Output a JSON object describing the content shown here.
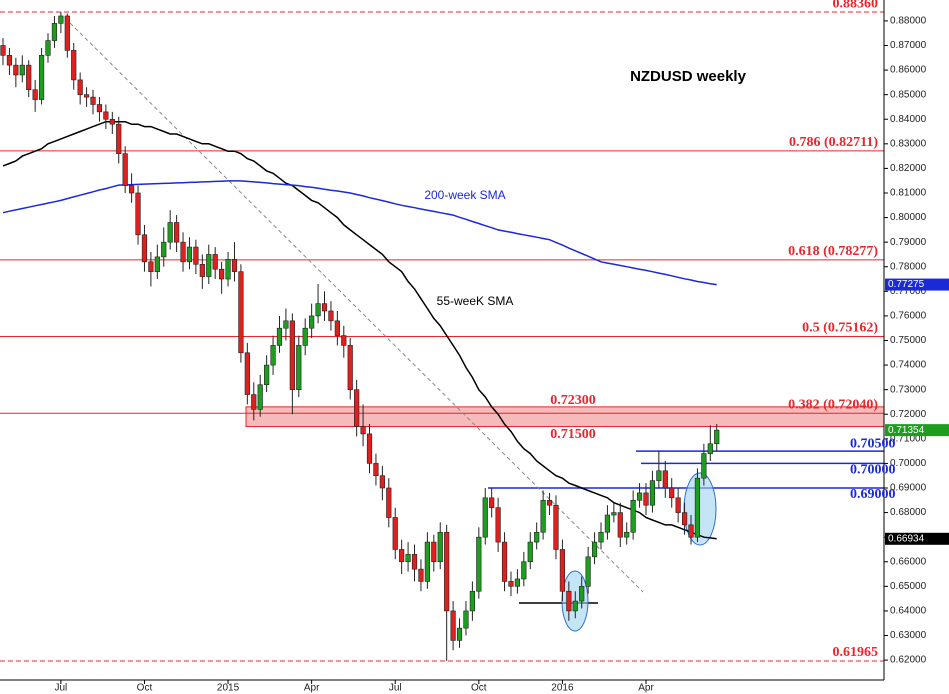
{
  "chart_data": {
    "type": "candlestick",
    "title": "NZDUSD weekly",
    "categories": [
      null,
      null,
      null,
      null,
      null,
      null,
      null,
      null,
      null,
      "Jul",
      null,
      null,
      null,
      null,
      null,
      null,
      null,
      null,
      null,
      null,
      null,
      null,
      "Oct",
      null,
      null,
      null,
      null,
      null,
      null,
      null,
      null,
      null,
      null,
      null,
      null,
      "2015",
      null,
      null,
      null,
      null,
      null,
      null,
      null,
      null,
      null,
      null,
      null,
      null,
      "Apr",
      null,
      null,
      null,
      null,
      null,
      null,
      null,
      null,
      null,
      null,
      null,
      null,
      "Jul",
      null,
      null,
      null,
      null,
      null,
      null,
      null,
      null,
      null,
      null,
      null,
      null,
      "Oct",
      null,
      null,
      null,
      null,
      null,
      null,
      null,
      null,
      null,
      null,
      null,
      null,
      "2016",
      null,
      null,
      null,
      null,
      null,
      null,
      null,
      null,
      null,
      null,
      null,
      null,
      "Apr",
      null,
      null,
      null,
      null,
      null,
      null,
      null,
      null,
      null,
      null,
      null
    ],
    "open": [
      0.87,
      0.866,
      0.862,
      0.858,
      0.862,
      0.852,
      0.848,
      0.866,
      0.872,
      0.879,
      0.882,
      0.868,
      0.856,
      0.85,
      0.849,
      0.846,
      0.843,
      0.84,
      0.838,
      0.826,
      0.813,
      0.81,
      0.793,
      0.782,
      0.778,
      0.784,
      0.79,
      0.798,
      0.79,
      0.782,
      0.788,
      0.781,
      0.776,
      0.785,
      0.779,
      0.775,
      0.783,
      0.778,
      0.745,
      0.728,
      0.722,
      0.732,
      0.74,
      0.748,
      0.755,
      0.758,
      0.73,
      0.748,
      0.755,
      0.76,
      0.765,
      0.762,
      0.758,
      0.752,
      0.748,
      0.73,
      0.715,
      0.712,
      0.7,
      0.695,
      0.69,
      0.678,
      0.665,
      0.66,
      0.663,
      0.657,
      0.652,
      0.668,
      0.66,
      0.672,
      0.64,
      0.628,
      0.633,
      0.64,
      0.648,
      0.67,
      0.686,
      0.682,
      0.668,
      0.652,
      0.65,
      0.653,
      0.66,
      0.668,
      0.672,
      0.685,
      0.683,
      0.665,
      0.648,
      0.64,
      0.644,
      0.65,
      0.662,
      0.668,
      0.672,
      0.679,
      0.68,
      0.67,
      0.672,
      0.685,
      0.688,
      0.683,
      0.693,
      0.697,
      0.69,
      0.686,
      0.68,
      0.675,
      0.67,
      0.694,
      0.704,
      0.708
    ],
    "high": [
      0.873,
      0.869,
      0.865,
      0.866,
      0.864,
      0.856,
      0.869,
      0.875,
      0.882,
      0.8836,
      0.883,
      0.871,
      0.859,
      0.853,
      0.852,
      0.849,
      0.846,
      0.843,
      0.841,
      0.829,
      0.818,
      0.813,
      0.797,
      0.786,
      0.789,
      0.796,
      0.803,
      0.801,
      0.794,
      0.792,
      0.791,
      0.785,
      0.789,
      0.788,
      0.782,
      0.786,
      0.79,
      0.781,
      0.749,
      0.733,
      0.736,
      0.744,
      0.752,
      0.76,
      0.763,
      0.761,
      0.752,
      0.759,
      0.765,
      0.773,
      0.77,
      0.766,
      0.762,
      0.756,
      0.751,
      0.734,
      0.724,
      0.716,
      0.704,
      0.699,
      0.694,
      0.682,
      0.669,
      0.668,
      0.667,
      0.661,
      0.672,
      0.671,
      0.676,
      0.675,
      0.644,
      0.637,
      0.644,
      0.652,
      0.674,
      0.69,
      0.69,
      0.686,
      0.672,
      0.656,
      0.657,
      0.664,
      0.672,
      0.676,
      0.689,
      0.688,
      0.687,
      0.669,
      0.652,
      0.648,
      0.654,
      0.666,
      0.672,
      0.676,
      0.683,
      0.684,
      0.684,
      0.676,
      0.689,
      0.692,
      0.692,
      0.697,
      0.705,
      0.701,
      0.694,
      0.69,
      0.684,
      0.679,
      0.698,
      0.708,
      0.7155,
      0.716
    ],
    "low": [
      0.862,
      0.858,
      0.853,
      0.855,
      0.849,
      0.843,
      0.846,
      0.863,
      0.869,
      0.875,
      0.865,
      0.852,
      0.846,
      0.845,
      0.842,
      0.839,
      0.836,
      0.834,
      0.822,
      0.81,
      0.806,
      0.789,
      0.778,
      0.772,
      0.775,
      0.78,
      0.787,
      0.786,
      0.778,
      0.779,
      0.777,
      0.771,
      0.773,
      0.775,
      0.769,
      0.772,
      0.774,
      0.741,
      0.724,
      0.7175,
      0.719,
      0.729,
      0.736,
      0.745,
      0.75,
      0.72,
      0.727,
      0.744,
      0.751,
      0.757,
      0.758,
      0.754,
      0.748,
      0.743,
      0.726,
      0.711,
      0.707,
      0.696,
      0.691,
      0.685,
      0.674,
      0.661,
      0.655,
      0.656,
      0.652,
      0.648,
      0.649,
      0.656,
      0.657,
      0.6197,
      0.624,
      0.625,
      0.63,
      0.636,
      0.645,
      0.667,
      0.678,
      0.664,
      0.648,
      0.646,
      0.647,
      0.65,
      0.657,
      0.665,
      0.669,
      0.679,
      0.661,
      0.644,
      0.636,
      0.637,
      0.641,
      0.647,
      0.659,
      0.665,
      0.669,
      0.676,
      0.666,
      0.667,
      0.669,
      0.682,
      0.679,
      0.68,
      0.69,
      0.686,
      0.682,
      0.676,
      0.671,
      0.667,
      0.668,
      0.691,
      0.701,
      0.705
    ],
    "close": [
      0.866,
      0.862,
      0.858,
      0.862,
      0.852,
      0.848,
      0.866,
      0.872,
      0.879,
      0.882,
      0.868,
      0.856,
      0.85,
      0.849,
      0.846,
      0.843,
      0.84,
      0.838,
      0.826,
      0.813,
      0.81,
      0.793,
      0.782,
      0.778,
      0.784,
      0.79,
      0.798,
      0.79,
      0.782,
      0.788,
      0.781,
      0.776,
      0.785,
      0.779,
      0.775,
      0.783,
      0.778,
      0.745,
      0.728,
      0.722,
      0.732,
      0.74,
      0.748,
      0.755,
      0.758,
      0.73,
      0.748,
      0.755,
      0.76,
      0.765,
      0.762,
      0.758,
      0.752,
      0.748,
      0.73,
      0.715,
      0.712,
      0.7,
      0.695,
      0.69,
      0.678,
      0.665,
      0.66,
      0.663,
      0.657,
      0.652,
      0.668,
      0.66,
      0.672,
      0.64,
      0.628,
      0.633,
      0.64,
      0.648,
      0.67,
      0.686,
      0.682,
      0.668,
      0.652,
      0.65,
      0.653,
      0.66,
      0.668,
      0.672,
      0.685,
      0.683,
      0.665,
      0.648,
      0.64,
      0.644,
      0.65,
      0.662,
      0.668,
      0.672,
      0.679,
      0.68,
      0.67,
      0.672,
      0.685,
      0.688,
      0.683,
      0.693,
      0.697,
      0.69,
      0.686,
      0.68,
      0.675,
      0.67,
      0.694,
      0.704,
      0.708,
      0.71354
    ],
    "last_label": "0.71354",
    "up_color": "#1e9e1e",
    "down_color": "#e0201e",
    "lines": [
      {
        "label": "55-weeK SMA",
        "color": "#000000",
        "last_label": "0.66934",
        "values": [
          0.821,
          0.822,
          0.823,
          0.825,
          0.826,
          0.827,
          0.828,
          0.83,
          0.831,
          0.832,
          0.833,
          0.834,
          0.835,
          0.836,
          0.837,
          0.838,
          0.839,
          0.839,
          0.839,
          0.839,
          0.838,
          0.838,
          0.837,
          0.837,
          0.836,
          0.835,
          0.834,
          0.834,
          0.833,
          0.832,
          0.831,
          0.83,
          0.83,
          0.829,
          0.828,
          0.827,
          0.827,
          0.826,
          0.824,
          0.823,
          0.821,
          0.819,
          0.818,
          0.816,
          0.814,
          0.813,
          0.811,
          0.809,
          0.807,
          0.806,
          0.804,
          0.802,
          0.8,
          0.797,
          0.795,
          0.793,
          0.791,
          0.789,
          0.787,
          0.785,
          0.782,
          0.78,
          0.778,
          0.774,
          0.771,
          0.767,
          0.763,
          0.759,
          0.756,
          0.752,
          0.748,
          0.744,
          0.739,
          0.735,
          0.73,
          0.727,
          0.723,
          0.72,
          0.716,
          0.713,
          0.709,
          0.706,
          0.704,
          0.701,
          0.699,
          0.697,
          0.695,
          0.694,
          0.692,
          0.691,
          0.69,
          0.689,
          0.688,
          0.687,
          0.686,
          0.684,
          0.683,
          0.682,
          0.681,
          0.68,
          0.678,
          0.677,
          0.676,
          0.675,
          0.675,
          0.674,
          0.673,
          0.672,
          0.671,
          0.67,
          0.6697,
          0.66934
        ]
      },
      {
        "label": "200-week SMA",
        "color": "#1a2ad6",
        "last_label": "0.77275",
        "values": [
          0.802,
          0.8026,
          0.8031,
          0.8037,
          0.8042,
          0.8048,
          0.8053,
          0.8059,
          0.8064,
          0.807,
          0.8077,
          0.8084,
          0.8091,
          0.8098,
          0.8105,
          0.8112,
          0.8118,
          0.8125,
          0.8132,
          0.8133,
          0.8134,
          0.8135,
          0.8136,
          0.8137,
          0.8138,
          0.8139,
          0.814,
          0.8141,
          0.8142,
          0.8143,
          0.8144,
          0.8145,
          0.8146,
          0.8147,
          0.8148,
          0.8149,
          0.8149,
          0.8149,
          0.8147,
          0.8145,
          0.8143,
          0.8141,
          0.8138,
          0.8136,
          0.8134,
          0.8132,
          0.813,
          0.8126,
          0.8123,
          0.8119,
          0.8115,
          0.8111,
          0.8108,
          0.8104,
          0.81,
          0.8094,
          0.8088,
          0.8081,
          0.8075,
          0.8069,
          0.8063,
          0.8056,
          0.805,
          0.8045,
          0.804,
          0.8035,
          0.803,
          0.8025,
          0.802,
          0.8015,
          0.801,
          0.8001,
          0.7993,
          0.7984,
          0.7976,
          0.7967,
          0.7959,
          0.795,
          0.7945,
          0.794,
          0.7935,
          0.793,
          0.7925,
          0.792,
          0.7915,
          0.791,
          0.7899,
          0.7888,
          0.7876,
          0.7865,
          0.7854,
          0.7843,
          0.7831,
          0.782,
          0.7815,
          0.781,
          0.7805,
          0.78,
          0.7795,
          0.779,
          0.7785,
          0.778,
          0.7774,
          0.7769,
          0.7763,
          0.7757,
          0.7751,
          0.7746,
          0.774,
          0.7736,
          0.7731,
          0.77275
        ]
      }
    ],
    "levels": [
      {
        "value": 0.8836,
        "label": "0.88360",
        "dashed": true
      },
      {
        "value": 0.82711,
        "label": "0.786 (0.82711)",
        "dashed": false
      },
      {
        "value": 0.78277,
        "label": "0.618 (0.78277)",
        "dashed": false
      },
      {
        "value": 0.75162,
        "label": "0.5 (0.75162)",
        "dashed": false
      },
      {
        "value": 0.7204,
        "label": "0.382 (0.72040)",
        "dashed": false
      },
      {
        "value": 0.61965,
        "label": "0.61965",
        "dashed": true
      }
    ],
    "level_color": "#e8262b",
    "zone": {
      "high": {
        "value": 0.723,
        "label": "0.72300"
      },
      "low": {
        "value": 0.715,
        "label": "0.71500"
      },
      "color": "#f4a3a3"
    },
    "supports": [
      {
        "value": 0.705,
        "label": "0.70500"
      },
      {
        "value": 0.7,
        "label": "0.70000"
      },
      {
        "value": 0.69,
        "label": "0.69000"
      }
    ],
    "support_color": "#1a2ad6",
    "ylim": [
      0.6119,
      0.8885
    ],
    "yticks": [
      {
        "value": 0.62,
        "label": "0.62000"
      },
      {
        "value": 0.63,
        "label": "0.63000"
      },
      {
        "value": 0.64,
        "label": "0.64000"
      },
      {
        "value": 0.65,
        "label": "0.65000"
      },
      {
        "value": 0.66,
        "label": "0.66000"
      },
      {
        "value": 0.67,
        "label": "0.67000"
      },
      {
        "value": 0.68,
        "label": "0.68000"
      },
      {
        "value": 0.69,
        "label": "0.69000"
      },
      {
        "value": 0.7,
        "label": "0.70000"
      },
      {
        "value": 0.71,
        "label": "0.71000"
      },
      {
        "value": 0.72,
        "label": "0.72000"
      },
      {
        "value": 0.73,
        "label": "0.73000"
      },
      {
        "value": 0.74,
        "label": "0.74000"
      },
      {
        "value": 0.75,
        "label": "0.75000"
      },
      {
        "value": 0.76,
        "label": "0.76000"
      },
      {
        "value": 0.77,
        "label": "0.77000"
      },
      {
        "value": 0.78,
        "label": "0.78000"
      },
      {
        "value": 0.79,
        "label": "0.79000"
      },
      {
        "value": 0.8,
        "label": "0.80000"
      },
      {
        "value": 0.81,
        "label": "0.81000"
      },
      {
        "value": 0.82,
        "label": "0.82000"
      },
      {
        "value": 0.83,
        "label": "0.83000"
      },
      {
        "value": 0.84,
        "label": "0.84000"
      },
      {
        "value": 0.85,
        "label": "0.85000"
      },
      {
        "value": 0.86,
        "label": "0.86000"
      },
      {
        "value": 0.87,
        "label": "0.87000"
      },
      {
        "value": 0.88,
        "label": "0.88000"
      }
    ]
  }
}
